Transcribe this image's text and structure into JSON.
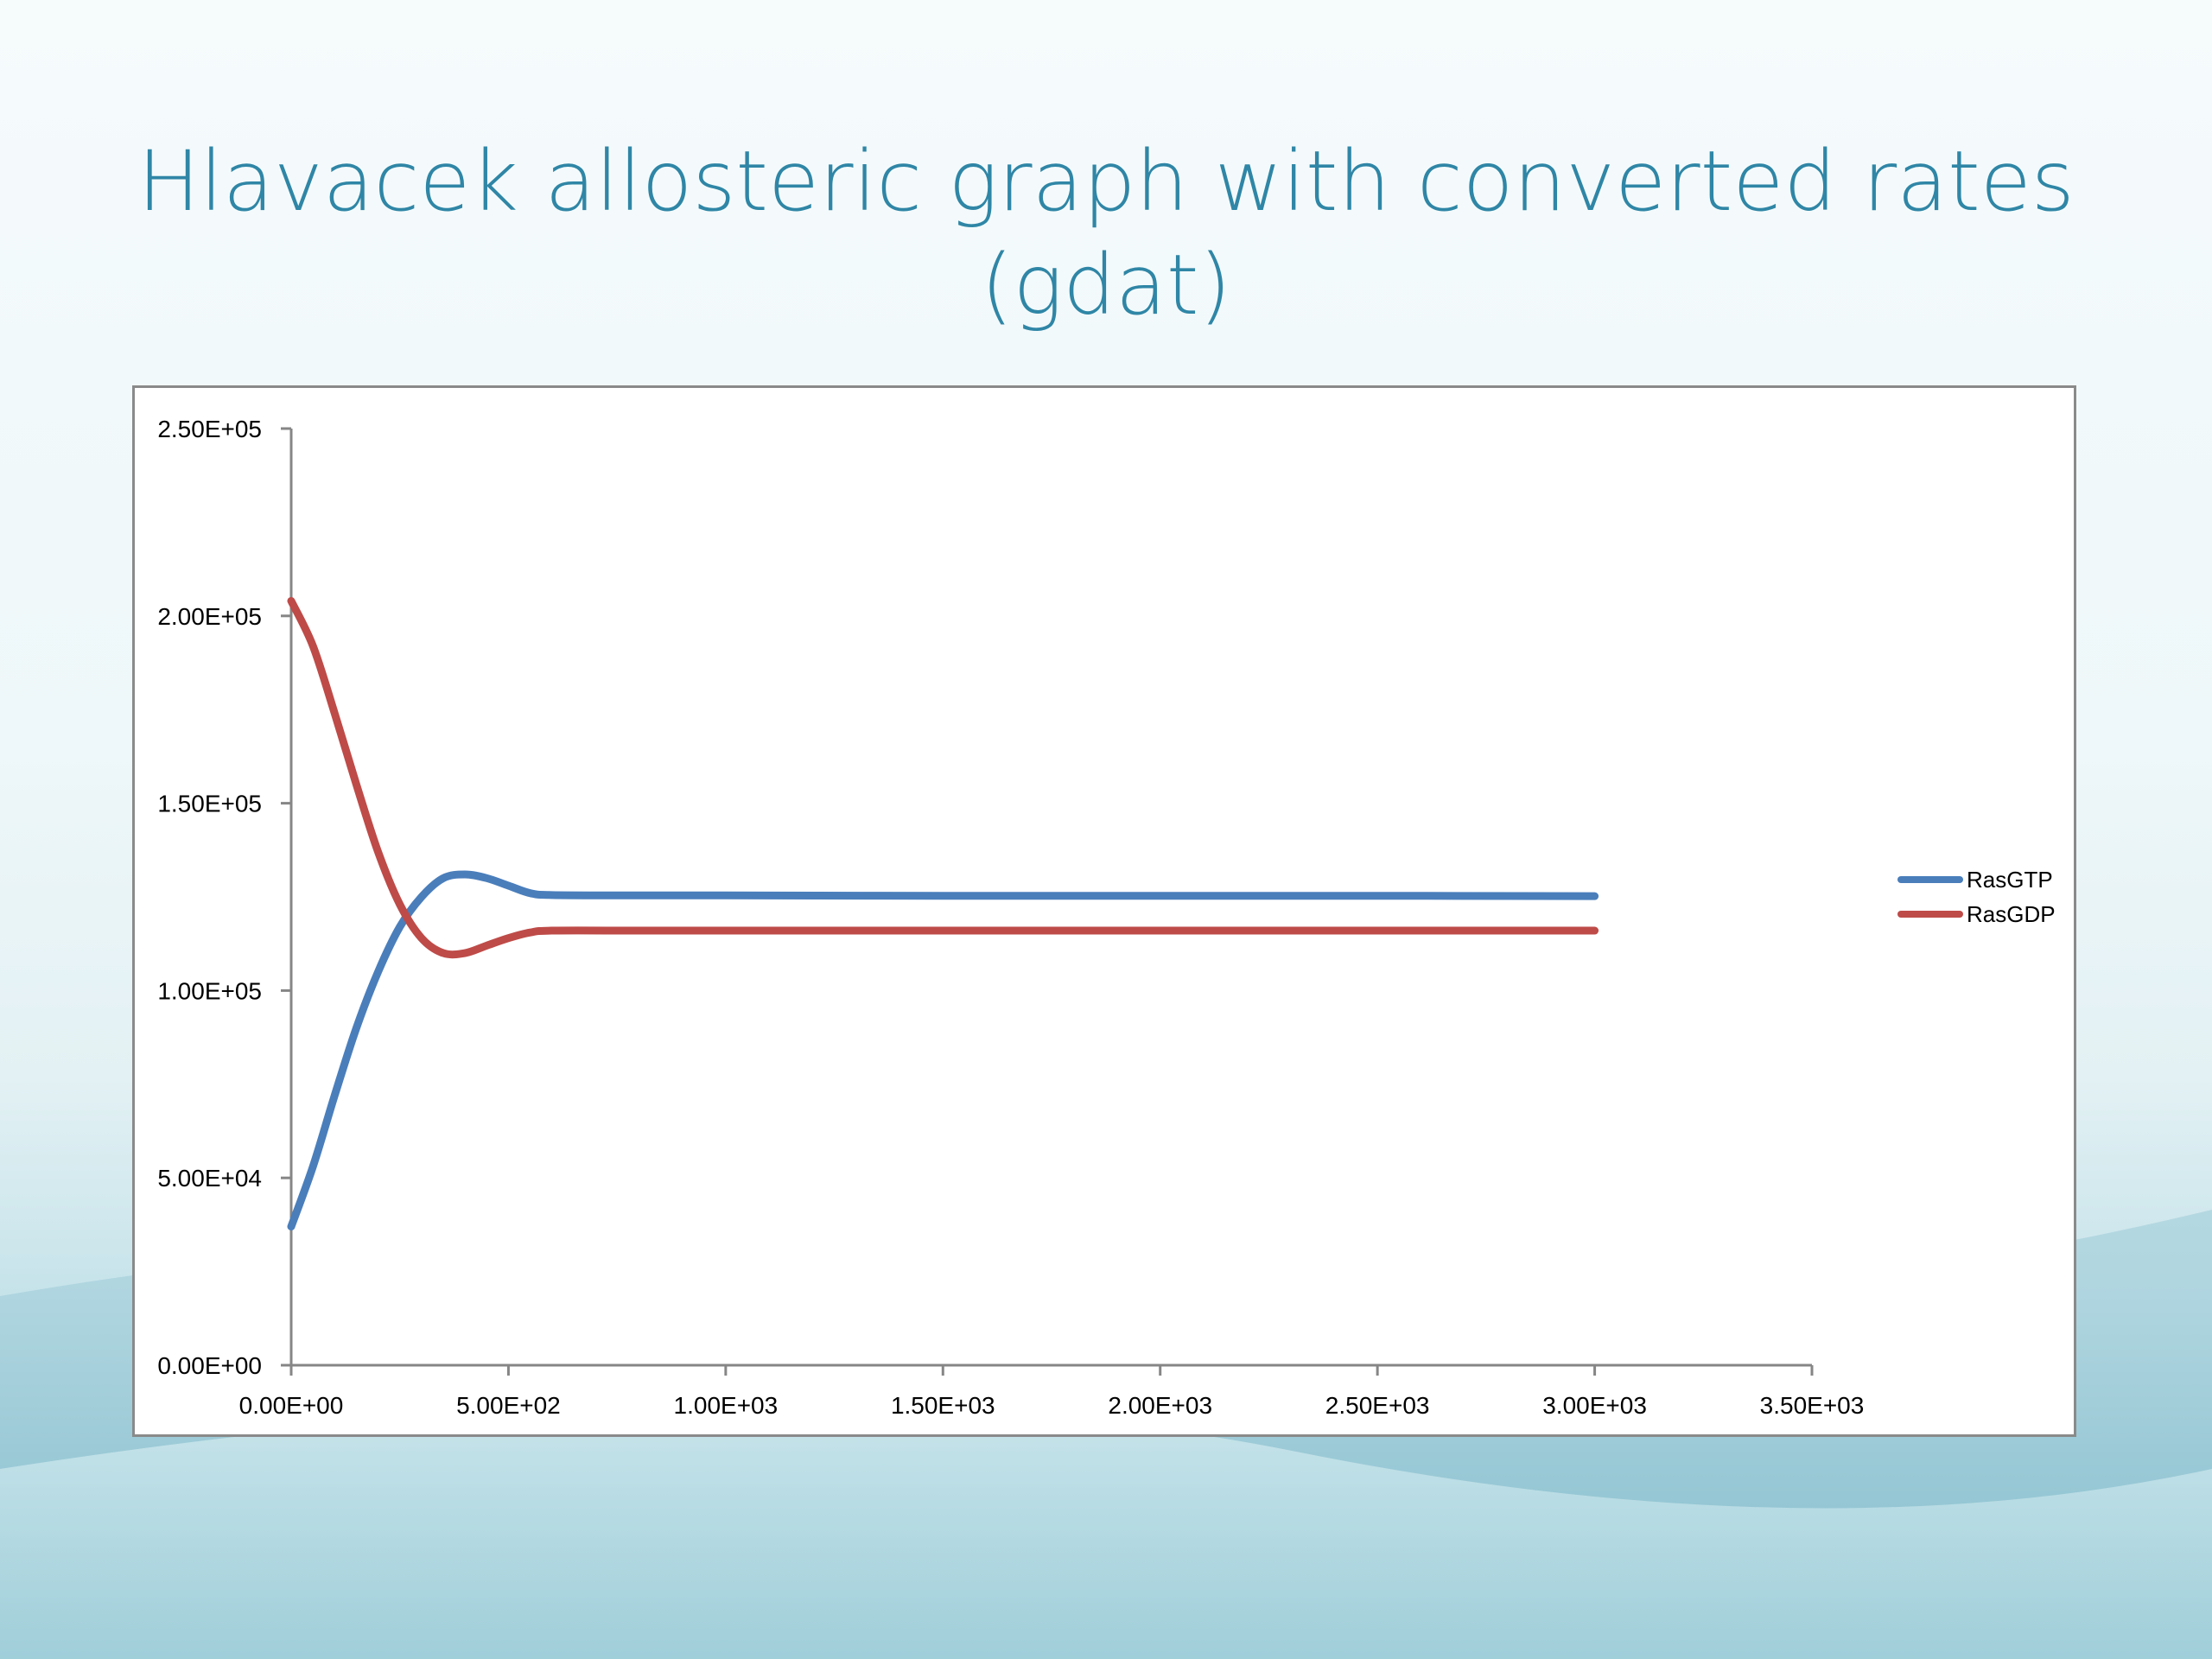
{
  "slide": {
    "title_line1": "Hlavacek allosteric graph with converted rates",
    "title_line2": "(gdat)"
  },
  "chart_data": {
    "type": "line",
    "title": "",
    "xlabel": "",
    "ylabel": "",
    "xlim": [
      0,
      3500
    ],
    "ylim": [
      0,
      250000
    ],
    "x_ticks": [
      "0.00E+00",
      "5.00E+02",
      "1.00E+03",
      "1.50E+03",
      "2.00E+03",
      "2.50E+03",
      "3.00E+03",
      "3.50E+03"
    ],
    "y_ticks": [
      "0.00E+00",
      "5.00E+04",
      "1.00E+05",
      "1.50E+05",
      "2.00E+05",
      "2.50E+05"
    ],
    "grid": false,
    "legend_position": "right",
    "series": [
      {
        "name": "RasGTP",
        "color": "#4a7ebb",
        "x": [
          0,
          50,
          100,
          150,
          200,
          250,
          300,
          350,
          400,
          450,
          500,
          550,
          600,
          800,
          1000,
          1500,
          2000,
          2500,
          3000
        ],
        "y": [
          37000,
          53000,
          72000,
          90000,
          105000,
          117000,
          125000,
          130000,
          131000,
          130000,
          128000,
          126000,
          125500,
          125400,
          125400,
          125300,
          125300,
          125300,
          125200
        ]
      },
      {
        "name": "RasGDP",
        "color": "#be4b48",
        "x": [
          0,
          50,
          100,
          150,
          200,
          250,
          300,
          350,
          400,
          450,
          500,
          550,
          600,
          800,
          1000,
          1500,
          2000,
          2500,
          3000
        ],
        "y": [
          204000,
          192000,
          174000,
          155000,
          137000,
          123000,
          114000,
          110000,
          110000,
          112000,
          114000,
          115500,
          116000,
          116000,
          116000,
          116000,
          116000,
          116000,
          116000
        ]
      }
    ]
  }
}
